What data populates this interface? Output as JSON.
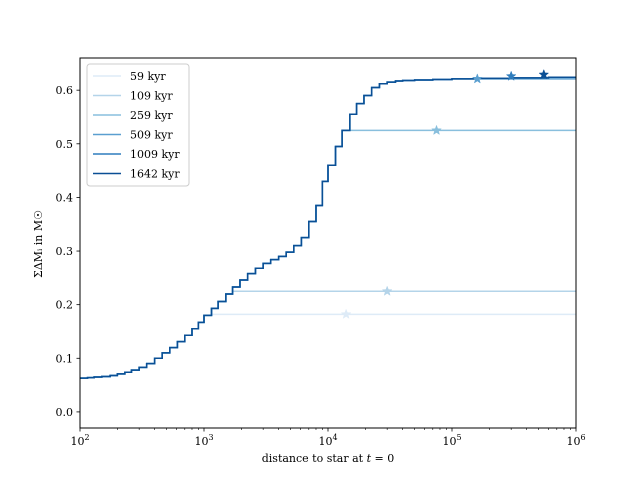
{
  "chart_data": {
    "type": "line",
    "step": true,
    "xscale": "log",
    "xlim": [
      100,
      1000000
    ],
    "ylim": [
      -0.03,
      0.66
    ],
    "xlabel": "distance to star at",
    "xlabel_var": "t",
    "xlabel_tail": " = 0",
    "ylabel": "ΣΔMᵢ in M☉",
    "legend_position": "upper-left",
    "xticks": [
      {
        "value": 100,
        "mantissa": "10",
        "exp": "2"
      },
      {
        "value": 1000,
        "mantissa": "10",
        "exp": "3"
      },
      {
        "value": 10000,
        "mantissa": "10",
        "exp": "4"
      },
      {
        "value": 100000,
        "mantissa": "10",
        "exp": "5"
      },
      {
        "value": 1000000,
        "mantissa": "10",
        "exp": "6"
      }
    ],
    "yticks": [
      {
        "value": 0.0,
        "label": "0.0"
      },
      {
        "value": 0.1,
        "label": "0.1"
      },
      {
        "value": 0.2,
        "label": "0.2"
      },
      {
        "value": 0.3,
        "label": "0.3"
      },
      {
        "value": 0.4,
        "label": "0.4"
      },
      {
        "value": 0.5,
        "label": "0.5"
      },
      {
        "value": 0.6,
        "label": "0.6"
      }
    ],
    "base": {
      "x": [
        100,
        115,
        130,
        150,
        175,
        200,
        230,
        260,
        300,
        345,
        400,
        460,
        530,
        610,
        700,
        800,
        900,
        1000,
        1150,
        1300,
        1500,
        1700,
        1950,
        2250,
        2600,
        3000,
        3450,
        4000,
        4600,
        5300,
        6100,
        7000,
        8000,
        9000,
        10000,
        11500,
        13000,
        15000,
        17000,
        19500,
        22500,
        26000,
        30000,
        35000,
        40000,
        50000,
        70000,
        100000,
        150000,
        300000,
        600000,
        1000000
      ],
      "y": [
        0.063,
        0.064,
        0.065,
        0.066,
        0.068,
        0.071,
        0.074,
        0.078,
        0.083,
        0.09,
        0.1,
        0.11,
        0.12,
        0.131,
        0.143,
        0.155,
        0.167,
        0.18,
        0.193,
        0.206,
        0.22,
        0.233,
        0.246,
        0.258,
        0.268,
        0.277,
        0.284,
        0.29,
        0.298,
        0.31,
        0.325,
        0.355,
        0.385,
        0.43,
        0.46,
        0.495,
        0.525,
        0.555,
        0.575,
        0.59,
        0.605,
        0.612,
        0.615,
        0.617,
        0.618,
        0.619,
        0.62,
        0.621,
        0.622,
        0.623,
        0.624,
        0.624
      ]
    },
    "series": [
      {
        "name": "59 kyr",
        "color": "#deebf7",
        "cap": 0.182,
        "star": [
          14000,
          0.182
        ]
      },
      {
        "name": "109 kyr",
        "color": "#b4d4e9",
        "cap": 0.225,
        "star": [
          30000,
          0.225
        ]
      },
      {
        "name": "259 kyr",
        "color": "#89bfdd",
        "cap": 0.525,
        "star": [
          75000,
          0.525
        ]
      },
      {
        "name": "509 kyr",
        "color": "#5a9fd0",
        "cap": 0.621,
        "star": [
          160000,
          0.621
        ]
      },
      {
        "name": "1009 kyr",
        "color": "#2f7dbd",
        "cap": 0.626,
        "star": [
          300000,
          0.626
        ]
      },
      {
        "name": "1642 kyr",
        "color": "#0a4f95",
        "cap": 0.629,
        "star": [
          550000,
          0.629
        ]
      }
    ]
  }
}
